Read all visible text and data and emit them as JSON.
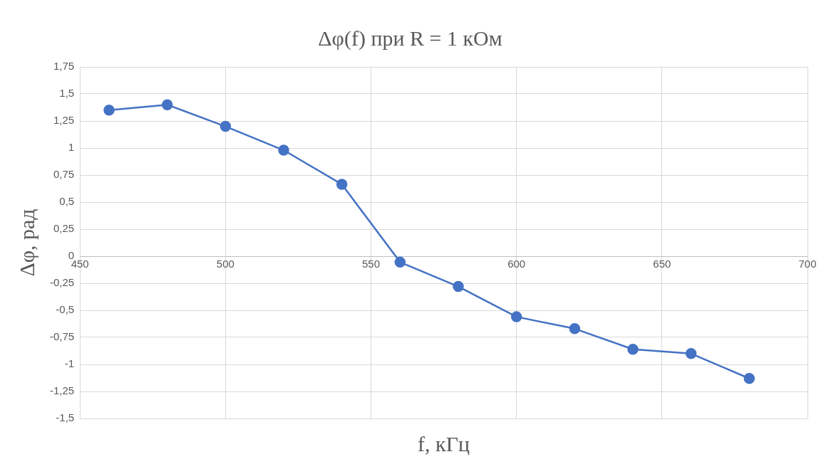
{
  "chart_data": {
    "type": "line",
    "title": "Δφ(f) при R = 1 кОм",
    "xlabel": "f, кГц",
    "ylabel": "Δφ, рад",
    "x": [
      460,
      480,
      500,
      520,
      540,
      560,
      580,
      600,
      620,
      640,
      660,
      680
    ],
    "series": [
      {
        "color": "#4472c4",
        "values": [
          1.35,
          1.4,
          1.2,
          0.98,
          0.665,
          -0.055,
          -0.28,
          -0.56,
          -0.67,
          -0.86,
          -0.9,
          -1.13
        ]
      }
    ],
    "xlim": [
      450,
      700
    ],
    "xticks": [
      450,
      500,
      550,
      600,
      650,
      700
    ],
    "ylim": [
      -1.5,
      1.75
    ],
    "yticks": [
      {
        "value": -1.5,
        "label": "-1,5"
      },
      {
        "value": -1.25,
        "label": "-1,25"
      },
      {
        "value": -1,
        "label": "-1"
      },
      {
        "value": -0.75,
        "label": "-0,75"
      },
      {
        "value": -0.5,
        "label": "-0,5"
      },
      {
        "value": -0.25,
        "label": "-0,25"
      },
      0,
      {
        "value": 0.25,
        "label": "0,25"
      },
      {
        "value": 0.5,
        "label": "0,5"
      },
      {
        "value": 0.75,
        "label": "0,75"
      },
      1,
      {
        "value": 1.25,
        "label": "1,25"
      },
      {
        "value": 1.5,
        "label": "1,5"
      },
      {
        "value": 1.75,
        "label": "1,75"
      }
    ],
    "grid": true,
    "marker": "circle",
    "line_style": "solid"
  }
}
